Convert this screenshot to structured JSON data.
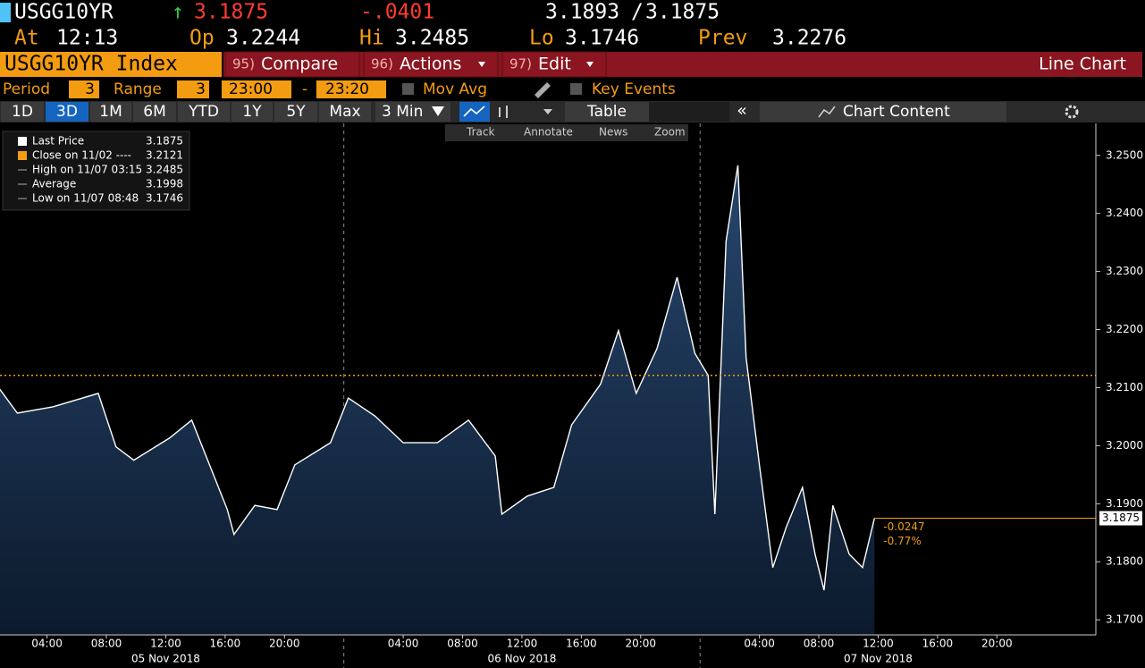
{
  "header": {
    "ticker": "USGG10YR",
    "arrow": "↑",
    "last": "3.1875",
    "change": "-.0401",
    "bid": "3.1893",
    "separator": "/",
    "ask": "3.1875",
    "at_label": "At",
    "time": "12:13",
    "open_label": "Op",
    "open": "3.2244",
    "high_label": "Hi",
    "high": "3.2485",
    "low_label": "Lo",
    "low": "3.1746",
    "prev_label": "Prev",
    "prev": "3.2276"
  },
  "menu": {
    "security": "USGG10YR Index",
    "items": [
      {
        "num": "95)",
        "label": "Compare"
      },
      {
        "num": "96)",
        "label": "Actions"
      },
      {
        "num": "97)",
        "label": "Edit"
      }
    ],
    "view": "Line Chart"
  },
  "settings": {
    "period_label": "Period",
    "period": "3",
    "range_label": "Range",
    "range": "3",
    "start": "23:00",
    "dash": "-",
    "end": "23:20",
    "mov_avg": "Mov Avg",
    "key_events": "Key Events"
  },
  "tabs": [
    "1D",
    "3D",
    "1M",
    "6M",
    "YTD",
    "1Y",
    "5Y",
    "Max"
  ],
  "interval": "3 Min",
  "table": "Table",
  "chart_content": "Chart Content",
  "tools": [
    "Track",
    "Annotate",
    "News",
    "Zoom"
  ],
  "legend": [
    {
      "label": "Last Price",
      "value": "3.1875"
    },
    {
      "label": "Close on 11/02 ----",
      "value": "3.2121"
    },
    {
      "label": "High on 11/07 03:15",
      "value": "3.2485"
    },
    {
      "label": "Average",
      "value": "3.1998"
    },
    {
      "label": "Low on 11/07 08:48",
      "value": "3.1746"
    }
  ],
  "chart_data": {
    "type": "area",
    "series": [
      {
        "name": "Last Price",
        "color": "#ffffff",
        "x": [
          "2018-11-05T00:48",
          "2018-11-05T02:00",
          "2018-11-05T04:24",
          "2018-11-05T07:27",
          "2018-11-05T08:39",
          "2018-11-05T09:51",
          "2018-11-05T12:15",
          "2018-11-05T13:45",
          "2018-11-05T14:57",
          "2018-11-05T16:09",
          "2018-11-05T16:36",
          "2018-11-05T18:00",
          "2018-11-05T19:30",
          "2018-11-05T20:42",
          "2018-11-05T23:06",
          "2018-11-06T00:18",
          "2018-11-06T02:06",
          "2018-11-06T04:00",
          "2018-11-06T06:18",
          "2018-11-06T08:24",
          "2018-11-06T10:12",
          "2018-11-06T10:39",
          "2018-11-06T12:21",
          "2018-11-06T14:09",
          "2018-11-06T15:21",
          "2018-11-06T17:18",
          "2018-11-06T18:30",
          "2018-11-06T19:42",
          "2018-11-06T21:06",
          "2018-11-06T22:27",
          "2018-11-06T23:39",
          "2018-11-07T00:33",
          "2018-11-07T01:00",
          "2018-11-07T01:45",
          "2018-11-07T02:33",
          "2018-11-07T03:06",
          "2018-11-07T04:00",
          "2018-11-07T04:54",
          "2018-11-07T05:48",
          "2018-11-07T06:54",
          "2018-11-07T07:45",
          "2018-11-07T08:21",
          "2018-11-07T08:57",
          "2018-11-07T10:03",
          "2018-11-07T10:57",
          "2018-11-07T11:45"
        ],
        "values": [
          3.2098,
          3.2056,
          3.2067,
          3.209,
          3.1998,
          3.1975,
          3.2013,
          3.2044,
          3.1967,
          3.189,
          3.1847,
          3.1897,
          3.189,
          3.1967,
          3.2005,
          3.2082,
          3.2051,
          3.2005,
          3.2005,
          3.2044,
          3.1982,
          3.1882,
          3.1913,
          3.1928,
          3.2036,
          3.2106,
          3.2198,
          3.209,
          3.2167,
          3.229,
          3.2159,
          3.2121,
          3.1882,
          3.2352,
          3.2483,
          3.2152,
          3.1967,
          3.179,
          3.1859,
          3.1928,
          3.1813,
          3.1751,
          3.1897,
          3.1813,
          3.179,
          3.1875
        ]
      }
    ],
    "reference": {
      "value": 3.2121,
      "color": "#f39c12"
    },
    "last_value": 3.1875,
    "change_labels": [
      "-0.0247",
      "-0.77%"
    ],
    "xlim": [
      "2018-11-05T00:50",
      "2018-11-08T02:40"
    ],
    "xticks": [
      {
        "value": "2018-11-05T04:00",
        "label": "04:00"
      },
      {
        "value": "2018-11-05T08:00",
        "label": "08:00"
      },
      {
        "value": "2018-11-05T12:00",
        "label": "12:00"
      },
      {
        "value": "2018-11-05T16:00",
        "label": "16:00"
      },
      {
        "value": "2018-11-05T20:00",
        "label": "20:00"
      },
      {
        "value": "2018-11-06T04:00",
        "label": "04:00"
      },
      {
        "value": "2018-11-06T08:00",
        "label": "08:00"
      },
      {
        "value": "2018-11-06T12:00",
        "label": "12:00"
      },
      {
        "value": "2018-11-06T16:00",
        "label": "16:00"
      },
      {
        "value": "2018-11-06T20:00",
        "label": "20:00"
      },
      {
        "value": "2018-11-07T04:00",
        "label": "04:00"
      },
      {
        "value": "2018-11-07T08:00",
        "label": "08:00"
      },
      {
        "value": "2018-11-07T12:00",
        "label": "12:00"
      },
      {
        "value": "2018-11-07T16:00",
        "label": "16:00"
      },
      {
        "value": "2018-11-07T20:00",
        "label": "20:00"
      }
    ],
    "date_labels": [
      {
        "value": "2018-11-05T12:00",
        "label": "05 Nov 2018"
      },
      {
        "value": "2018-11-06T12:00",
        "label": "06 Nov 2018"
      },
      {
        "value": "2018-11-07T12:00",
        "label": "07 Nov 2018"
      }
    ],
    "day_dividers": [
      "2018-11-06T00:00",
      "2018-11-07T00:00"
    ],
    "ylim": [
      3.1674,
      3.2552
    ],
    "yticks": [
      {
        "value": 3.17,
        "label": "3.1700"
      },
      {
        "value": 3.18,
        "label": "3.1800"
      },
      {
        "value": 3.19,
        "label": "3.1900"
      },
      {
        "value": 3.2,
        "label": "3.2000"
      },
      {
        "value": 3.21,
        "label": "3.2100"
      },
      {
        "value": 3.22,
        "label": "3.2200"
      },
      {
        "value": 3.23,
        "label": "3.2300"
      },
      {
        "value": 3.24,
        "label": "3.2400"
      },
      {
        "value": 3.25,
        "label": "3.2500"
      }
    ]
  }
}
